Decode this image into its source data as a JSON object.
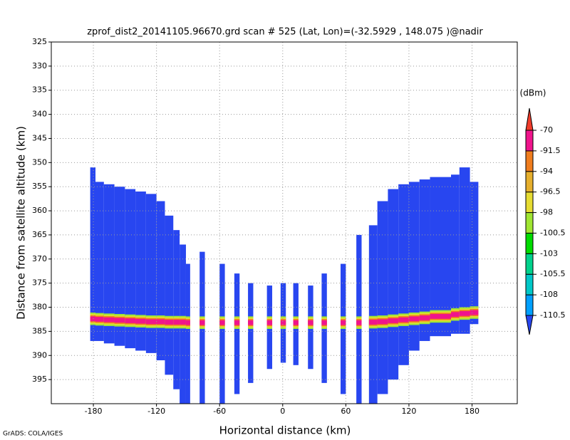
{
  "chart_data": {
    "type": "profile",
    "title": "zprof_dist2_20141105.96670.grd   scan # 525   (Lat, Lon)=(-32.5929 , 148.075 )@nadir",
    "x_label": "Horizontal distance (km)",
    "y_label": "Distance from satellite altitude (km)",
    "footer": "GrADS: COLA/IGES",
    "xlim": [
      -220,
      223
    ],
    "ylim": [
      325,
      400
    ],
    "y_inverted": true,
    "grid": true,
    "xticks": [
      -180,
      -120,
      -60,
      0,
      60,
      120,
      180
    ],
    "yticks": [
      325,
      330,
      335,
      340,
      345,
      350,
      355,
      360,
      365,
      370,
      375,
      380,
      385,
      390,
      395
    ],
    "colorbar": {
      "unit": "(dBm)",
      "levels": [
        -110.5,
        -108,
        -105.5,
        -103,
        -100.5,
        -98,
        -96.5,
        -94,
        -91.5,
        -70
      ],
      "colors": [
        "#2846f0",
        "#00a0ff",
        "#00c8c8",
        "#00d28c",
        "#00dc00",
        "#a0e632",
        "#e6dc32",
        "#e6af2d",
        "#f07d1e",
        "#f0148c",
        "#f03c2b"
      ]
    },
    "columns": [
      {
        "x0": -183,
        "x1": -178,
        "top": 351,
        "bottom": 387,
        "surface": 382.4,
        "peak": -80
      },
      {
        "x0": -178,
        "x1": -170,
        "top": 354,
        "bottom": 387,
        "surface": 382.5,
        "peak": -80
      },
      {
        "x0": -170,
        "x1": -160,
        "top": 354.5,
        "bottom": 387.5,
        "surface": 382.6,
        "peak": -80
      },
      {
        "x0": -160,
        "x1": -150,
        "top": 355,
        "bottom": 388,
        "surface": 382.7,
        "peak": -80
      },
      {
        "x0": -150,
        "x1": -140,
        "top": 355.5,
        "bottom": 388.5,
        "surface": 382.8,
        "peak": -80
      },
      {
        "x0": -140,
        "x1": -130,
        "top": 356,
        "bottom": 389,
        "surface": 382.9,
        "peak": -80
      },
      {
        "x0": -130,
        "x1": -120,
        "top": 356.5,
        "bottom": 389.5,
        "surface": 383,
        "peak": -80
      },
      {
        "x0": -120,
        "x1": -112,
        "top": 358,
        "bottom": 391,
        "surface": 383,
        "peak": -80
      },
      {
        "x0": -112,
        "x1": -104,
        "top": 361,
        "bottom": 394,
        "surface": 383.1,
        "peak": -80
      },
      {
        "x0": -104,
        "x1": -98,
        "top": 364,
        "bottom": 397,
        "surface": 383.1,
        "peak": -80
      },
      {
        "x0": -98,
        "x1": -92,
        "top": 367,
        "bottom": 400,
        "surface": 383.1,
        "peak": -80
      },
      {
        "x0": -92,
        "x1": -88,
        "top": 371,
        "bottom": 400,
        "surface": 383.2,
        "peak": -85
      },
      {
        "x0": -79,
        "x1": -74,
        "top": 368.5,
        "bottom": 400,
        "surface": 383.2,
        "peak": -85
      },
      {
        "x0": -60,
        "x1": -55,
        "top": 371,
        "bottom": 400,
        "surface": 383.2,
        "peak": -85
      },
      {
        "x0": -46,
        "x1": -41,
        "top": 373,
        "bottom": 398,
        "surface": 383.2,
        "peak": -85
      },
      {
        "x0": -33,
        "x1": -28,
        "top": 375,
        "bottom": 395.7,
        "surface": 383.2,
        "peak": -85
      },
      {
        "x0": -15,
        "x1": -10,
        "top": 375.5,
        "bottom": 392.8,
        "surface": 383.2,
        "peak": -85
      },
      {
        "x0": -2,
        "x1": 3,
        "top": 375,
        "bottom": 391.5,
        "surface": 383.2,
        "peak": -85
      },
      {
        "x0": 10,
        "x1": 15,
        "top": 375,
        "bottom": 392,
        "surface": 383.2,
        "peak": -85
      },
      {
        "x0": 24,
        "x1": 29,
        "top": 375.5,
        "bottom": 392.8,
        "surface": 383.2,
        "peak": -85
      },
      {
        "x0": 37,
        "x1": 42,
        "top": 373,
        "bottom": 395.7,
        "surface": 383.2,
        "peak": -85
      },
      {
        "x0": 55,
        "x1": 60,
        "top": 371,
        "bottom": 398,
        "surface": 383.2,
        "peak": -85
      },
      {
        "x0": 70,
        "x1": 75,
        "top": 365,
        "bottom": 400,
        "surface": 383.2,
        "peak": -85
      },
      {
        "x0": 82,
        "x1": 90,
        "top": 363,
        "bottom": 400,
        "surface": 383.1,
        "peak": -80
      },
      {
        "x0": 90,
        "x1": 100,
        "top": 358,
        "bottom": 398,
        "surface": 383,
        "peak": -80
      },
      {
        "x0": 100,
        "x1": 110,
        "top": 355.5,
        "bottom": 395,
        "surface": 382.8,
        "peak": -80
      },
      {
        "x0": 110,
        "x1": 120,
        "top": 354.5,
        "bottom": 392,
        "surface": 382.6,
        "peak": -80
      },
      {
        "x0": 120,
        "x1": 130,
        "top": 354,
        "bottom": 389,
        "surface": 382.4,
        "peak": -80
      },
      {
        "x0": 130,
        "x1": 140,
        "top": 353.5,
        "bottom": 387,
        "surface": 382.2,
        "peak": -80
      },
      {
        "x0": 140,
        "x1": 160,
        "top": 353,
        "bottom": 386,
        "surface": 381.9,
        "peak": -80
      },
      {
        "x0": 160,
        "x1": 168,
        "top": 352.5,
        "bottom": 385.5,
        "surface": 381.5,
        "peak": -80
      },
      {
        "x0": 168,
        "x1": 178,
        "top": 351,
        "bottom": 385.5,
        "surface": 381.3,
        "peak": -80
      },
      {
        "x0": 178,
        "x1": 186,
        "top": 354,
        "bottom": 383.5,
        "surface": 381.1,
        "peak": -80
      }
    ]
  }
}
